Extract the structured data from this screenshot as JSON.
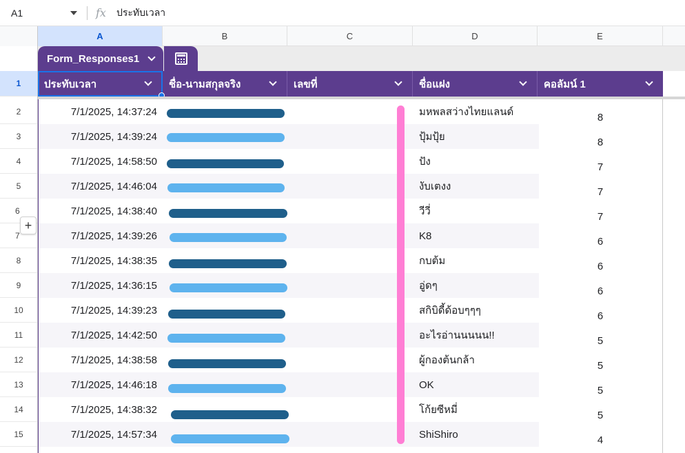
{
  "formula_bar": {
    "cell_ref": "A1",
    "fx_label": "fx",
    "formula": "ประทับเวลา"
  },
  "columns": [
    "A",
    "B",
    "C",
    "D",
    "E"
  ],
  "table": {
    "tab_name": "Form_Responses1",
    "headers": [
      "ประทับเวลา",
      "ชื่อ-นามสกุลจริง",
      "เลขที่",
      "ชื่อแฝง",
      "คอลัมน์ 1"
    ]
  },
  "row_numbers": [
    "1",
    "2",
    "3",
    "4",
    "5",
    "6",
    "7",
    "8",
    "9",
    "10",
    "11",
    "12",
    "13",
    "14",
    "15"
  ],
  "rows": [
    {
      "timestamp": "7/1/2025, 14:37:24",
      "alias": "มหพลสว่างไทยแลนด์",
      "score": "8"
    },
    {
      "timestamp": "7/1/2025, 14:39:24",
      "alias": "ปุ้มปุ้ย",
      "score": "8"
    },
    {
      "timestamp": "7/1/2025, 14:58:50",
      "alias": "ปัง",
      "score": "7"
    },
    {
      "timestamp": "7/1/2025, 14:46:04",
      "alias": "งับเตงง",
      "score": "7"
    },
    {
      "timestamp": "7/1/2025, 14:38:40",
      "alias": "วีวี่",
      "score": "7"
    },
    {
      "timestamp": "7/1/2025, 14:39:26",
      "alias": "K8",
      "score": "6"
    },
    {
      "timestamp": "7/1/2025, 14:38:35",
      "alias": "กบต้ม",
      "score": "6"
    },
    {
      "timestamp": "7/1/2025, 14:36:15",
      "alias": "อู่ดๆ",
      "score": "6"
    },
    {
      "timestamp": "7/1/2025, 14:39:23",
      "alias": "สกิบิดี้ด้อบๆๆๆ",
      "score": "6"
    },
    {
      "timestamp": "7/1/2025, 14:42:50",
      "alias": "อะไรอ่านนนนน!!",
      "score": "5"
    },
    {
      "timestamp": "7/1/2025, 14:38:58",
      "alias": "ผู้กองต้นกล้า",
      "score": "5"
    },
    {
      "timestamp": "7/1/2025, 14:46:18",
      "alias": "OK",
      "score": "5"
    },
    {
      "timestamp": "7/1/2025, 14:38:32",
      "alias": "โก้ยซีหมี่",
      "score": "5"
    },
    {
      "timestamp": "7/1/2025, 14:57:34",
      "alias": "ShiShiro",
      "score": "4"
    }
  ],
  "add_label": "+",
  "colors": {
    "table_header": "#5c3d8e",
    "selection": "#1a73e8",
    "redact_dark": "#1f5f8b",
    "redact_light": "#5eb3ee",
    "redact_pink": "#ff7ed4"
  }
}
